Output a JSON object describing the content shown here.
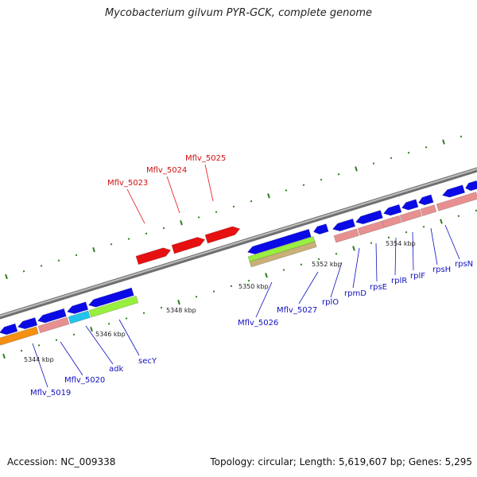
{
  "title": "Mycobacterium gilvum PYR-GCK, complete genome",
  "footer": {
    "accession": "Accession: NC_009338",
    "topology": "Topology: circular; Length: 5,619,607 bp; Genes: 5,295"
  },
  "colors": {
    "backbone": "#8a8a8a",
    "tick": "#2e7d1e",
    "gene_blue": "#0a0ae6",
    "gene_red": "#e61010",
    "gene_pink": "#e89090",
    "gene_cyan": "#22c4ec",
    "gene_lime": "#98ef40",
    "gene_orange": "#f59010",
    "gene_tan": "#c8b078",
    "label_blue": "#1010c0",
    "label_red": "#d01010"
  },
  "kbp_labels": [
    "5344 kbp",
    "5346 kbp",
    "5348 kbp",
    "5350 kbp",
    "5352 kbp",
    "5354 kbp"
  ],
  "gene_labels": [
    {
      "text": "Mflv_5023",
      "color": "red"
    },
    {
      "text": "Mflv_5024",
      "color": "red"
    },
    {
      "text": "Mflv_5025",
      "color": "red"
    },
    {
      "text": "Mflv_5019",
      "color": "blue"
    },
    {
      "text": "Mflv_5020",
      "color": "blue"
    },
    {
      "text": "adk",
      "color": "blue"
    },
    {
      "text": "secY",
      "color": "blue"
    },
    {
      "text": "Mflv_5026",
      "color": "blue"
    },
    {
      "text": "Mflv_5027",
      "color": "blue"
    },
    {
      "text": "rplO",
      "color": "blue"
    },
    {
      "text": "rpmD",
      "color": "blue"
    },
    {
      "text": "rpsE",
      "color": "blue"
    },
    {
      "text": "rplR",
      "color": "blue"
    },
    {
      "text": "rplF",
      "color": "blue"
    },
    {
      "text": "rpsH",
      "color": "blue"
    },
    {
      "text": "rpsN",
      "color": "blue"
    }
  ]
}
